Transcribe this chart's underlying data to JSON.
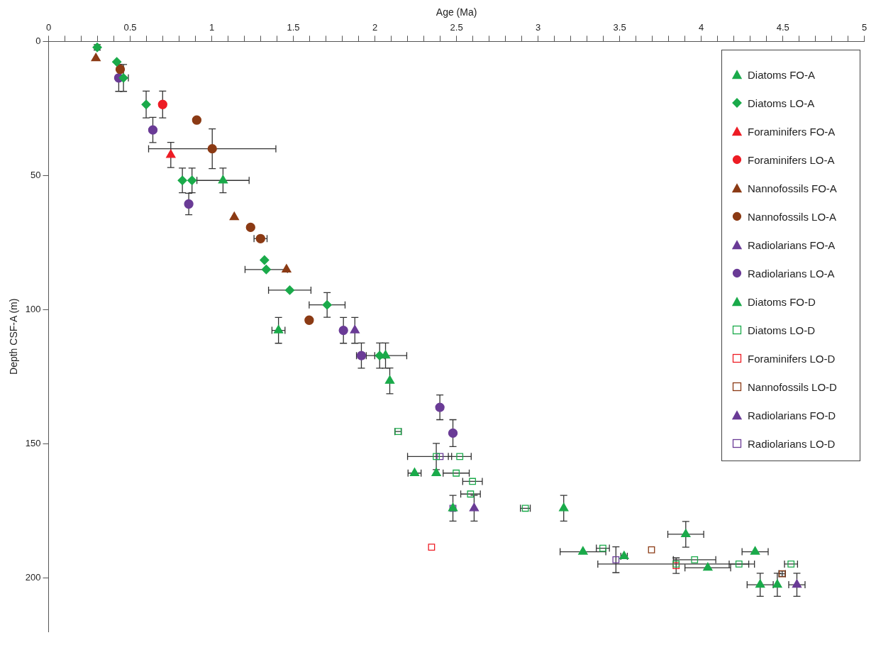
{
  "chart_data": {
    "type": "scatter",
    "xlabel": "Age (Ma)",
    "ylabel": "Depth CSF-A (m)",
    "xlim": [
      0,
      5
    ],
    "ylim": [
      220,
      0
    ],
    "xticks": [
      0,
      {
        "value": 0.1,
        "label": null
      },
      {
        "value": 0.2,
        "label": null
      },
      {
        "value": 0.3,
        "label": null
      },
      {
        "value": 0.4,
        "label": null
      },
      0.5,
      {
        "value": 0.6,
        "label": null
      },
      {
        "value": 0.7,
        "label": null
      },
      {
        "value": 0.8,
        "label": null
      },
      {
        "value": 0.9,
        "label": null
      },
      1,
      {
        "value": 1.1,
        "label": null
      },
      {
        "value": 1.2,
        "label": null
      },
      {
        "value": 1.3,
        "label": null
      },
      {
        "value": 1.4,
        "label": null
      },
      1.5,
      {
        "value": 1.6,
        "label": null
      },
      {
        "value": 1.7,
        "label": null
      },
      {
        "value": 1.8,
        "label": null
      },
      {
        "value": 1.9,
        "label": null
      },
      2,
      {
        "value": 2.1,
        "label": null
      },
      {
        "value": 2.2,
        "label": null
      },
      {
        "value": 2.3,
        "label": null
      },
      {
        "value": 2.4,
        "label": null
      },
      2.5,
      {
        "value": 2.6,
        "label": null
      },
      {
        "value": 2.7,
        "label": null
      },
      {
        "value": 2.8,
        "label": null
      },
      {
        "value": 2.9,
        "label": null
      },
      3,
      {
        "value": 3.1,
        "label": null
      },
      {
        "value": 3.2,
        "label": null
      },
      {
        "value": 3.3,
        "label": null
      },
      {
        "value": 3.4,
        "label": null
      },
      3.5,
      {
        "value": 3.6,
        "label": null
      },
      {
        "value": 3.7,
        "label": null
      },
      {
        "value": 3.8,
        "label": null
      },
      {
        "value": 3.9,
        "label": null
      },
      4,
      {
        "value": 4.1,
        "label": null
      },
      {
        "value": 4.2,
        "label": null
      },
      {
        "value": 4.3,
        "label": null
      },
      {
        "value": 4.4,
        "label": null
      },
      4.5,
      {
        "value": 4.6,
        "label": null
      },
      {
        "value": 4.7,
        "label": null
      },
      {
        "value": 4.8,
        "label": null
      },
      {
        "value": 4.9,
        "label": null
      },
      5
    ],
    "yticks": [
      0,
      50,
      100,
      150,
      200
    ],
    "grid": false,
    "legend": "top right",
    "series": [
      {
        "name": "Diatoms FO-A",
        "color": "#1aaa4a",
        "marker": "triangle",
        "x": [
          1.069,
          1.409,
          2.065,
          2.091
        ],
        "values": [
          51.8,
          107.7,
          117.1,
          126.5
        ],
        "errors": [
          4.6,
          4.8,
          4.7,
          4.8
        ],
        "xerrors": [
          0.16,
          0.04,
          0.13,
          null
        ]
      },
      {
        "name": "Diatoms LO-A",
        "color": "#1aaa4a",
        "marker": "diamond",
        "x": [
          0.298,
          0.418,
          0.459,
          0.598,
          0.82,
          0.879,
          1.323,
          1.334,
          1.478,
          1.707,
          2.029
        ],
        "values": [
          2.2,
          7.6,
          13.6,
          23.5,
          51.8,
          51.8,
          81.5,
          85,
          92.7,
          98.2,
          117.1
        ],
        "errors": [
          1,
          null,
          5,
          5,
          4.6,
          4.6,
          null,
          null,
          null,
          4.6,
          4.7
        ],
        "xerrors": [
          null,
          null,
          0.03,
          null,
          null,
          null,
          null,
          0.13,
          0.13,
          0.11,
          0.03
        ]
      },
      {
        "name": "Foraminifers FO-A",
        "color": "#ed1c24",
        "marker": "triangle",
        "x": [
          0.749
        ],
        "values": [
          42.3
        ],
        "errors": [
          4.7
        ]
      },
      {
        "name": "Foraminifers LO-A",
        "color": "#ed1c24",
        "marker": "circle",
        "x": [
          0.699
        ],
        "values": [
          23.5
        ],
        "errors": [
          5
        ]
      },
      {
        "name": "Nannofossils FO-A",
        "color": "#8b3a14",
        "marker": "triangle",
        "x": [
          0.29,
          1.138,
          1.458
        ],
        "values": [
          6.3,
          65.5,
          85
        ]
      },
      {
        "name": "Nannofossils LO-A",
        "color": "#8b3a14",
        "marker": "circle",
        "x": [
          0.439,
          0.908,
          1.003,
          1.238,
          1.299,
          1.597
        ],
        "values": [
          10.4,
          29.3,
          40,
          69.3,
          73.5,
          103.9
        ],
        "errors": [
          null,
          null,
          7.4,
          null,
          null,
          null
        ],
        "xerrors": [
          null,
          null,
          0.39,
          null,
          0.04,
          null
        ]
      },
      {
        "name": "Radiolarians FO-A",
        "color": "#6a3b96",
        "marker": "triangle",
        "x": [
          1.877
        ],
        "values": [
          107.7
        ],
        "errors": [
          4.8
        ]
      },
      {
        "name": "Radiolarians LO-A",
        "color": "#6a3b96",
        "marker": "circle",
        "x": [
          0.43,
          0.639,
          0.859,
          1.807,
          1.917,
          2.398,
          2.478
        ],
        "values": [
          13.6,
          33,
          60.6,
          107.7,
          117.1,
          136.4,
          146
        ],
        "errors": [
          5,
          4.7,
          4,
          4.8,
          4.7,
          4.6,
          5
        ],
        "xerrors": [
          null,
          null,
          null,
          null,
          0.03,
          null,
          null
        ]
      },
      {
        "name": "Diatoms FO-D",
        "color": "#1aaa4a",
        "marker": "triangle",
        "x": [
          2.243,
          2.376,
          2.478,
          3.157,
          3.905,
          3.275,
          3.527,
          4.04,
          4.33,
          4.361,
          4.466
        ],
        "values": [
          160.9,
          160.9,
          174,
          174,
          183.7,
          190.2,
          191.9,
          196.2,
          190.2,
          202.5,
          202.5
        ],
        "errors": [
          null,
          null,
          4.8,
          4.8,
          4.8,
          null,
          null,
          null,
          null,
          4.3,
          4.3
        ],
        "xerrors": [
          0.04,
          null,
          null,
          null,
          0.11,
          0.14,
          0.02,
          0.14,
          0.08,
          0.08,
          null
        ]
      },
      {
        "name": "Diatoms LO-D",
        "color": "#1aaa4a",
        "marker": "square",
        "x": [
          2.142,
          2.376,
          2.52,
          2.498,
          2.598,
          2.586,
          2.922,
          3.397,
          3.846,
          3.959,
          4.231,
          4.55
        ],
        "values": [
          145.4,
          154.7,
          154.7,
          160.9,
          164,
          168.7,
          174,
          188.9,
          194.8,
          193.2,
          194.8,
          194.8
        ],
        "errors": [
          null,
          4.9,
          null,
          null,
          null,
          null,
          null,
          null,
          null,
          null,
          null,
          null
        ],
        "xerrors": [
          0.02,
          [
            2.2,
            2.47
          ],
          0.07,
          0.08,
          0.06,
          0.06,
          0.03,
          0.04,
          0.48,
          0.13,
          0.06,
          0.04
        ]
      },
      {
        "name": "Foraminifers LO-D",
        "color": "#ed1c24",
        "marker": "square",
        "x": [
          2.347,
          3.846
        ],
        "values": [
          188.5,
          195.4
        ],
        "errors": [
          null,
          2.9
        ]
      },
      {
        "name": "Nannofossils LO-D",
        "color": "#8b3a14",
        "marker": "square",
        "x": [
          3.695,
          4.496
        ],
        "values": [
          189.5,
          198.4
        ],
        "errors": [
          null,
          1
        ],
        "xerrors": [
          null,
          0.02
        ]
      },
      {
        "name": "Radiolarians FO-D",
        "color": "#6a3b96",
        "marker": "triangle",
        "x": [
          2.608,
          4.586
        ],
        "values": [
          174,
          202.5
        ],
        "errors": [
          4.8,
          4.3
        ],
        "xerrors": [
          null,
          0.05
        ]
      },
      {
        "name": "Radiolarians LO-D",
        "color": "#6a3b96",
        "marker": "square",
        "x": [
          2.399,
          2.478,
          3.477
        ],
        "values": [
          154.7,
          174,
          193.2
        ],
        "errors": [
          null,
          null,
          4.8
        ]
      }
    ]
  }
}
